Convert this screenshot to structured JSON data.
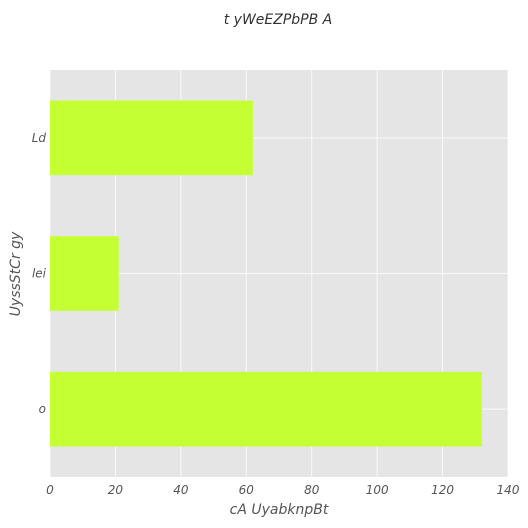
{
  "chart_data": {
    "type": "bar",
    "orientation": "horizontal",
    "title": "t yWeEZPbPB A",
    "xlabel": "cA UyabknpBt",
    "ylabel": "UyssStCr gy",
    "categories": [
      "Ld",
      "lei",
      "o"
    ],
    "values": [
      62,
      21,
      132
    ],
    "xlim": [
      0,
      140
    ],
    "xticks": [
      0,
      20,
      40,
      60,
      80,
      100,
      120,
      140
    ],
    "grid": true,
    "colors": {
      "bar": "#c3ff33",
      "plot_background": "#e5e5e5"
    }
  }
}
